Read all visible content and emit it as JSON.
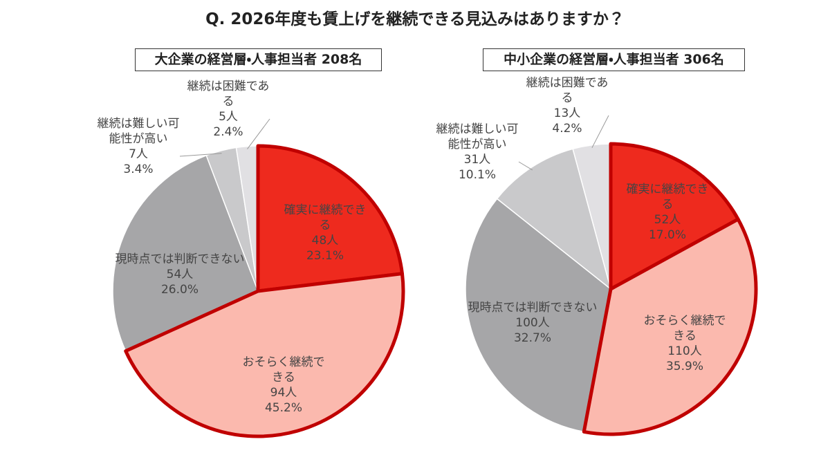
{
  "title": "Q. 2026年度も賃上げを継続できる見込みはありますか？",
  "chart_data": [
    {
      "type": "pie",
      "title": "大企業の経営層・人事担当者 208名",
      "categories": [
        "確実に継続できる",
        "おそらく継続できる",
        "現時点では判断できない",
        "継続は難しい可能性が高い",
        "継続は困難である"
      ],
      "count_labels": [
        "48人",
        "94人",
        "54人",
        "7人",
        "5人"
      ],
      "values": [
        23.1,
        45.2,
        26.0,
        3.4,
        2.4
      ],
      "value_labels": [
        "23.1%",
        "45.2%",
        "26.0%",
        "3.4%",
        "2.4%"
      ],
      "colors": [
        "#ee2a1e",
        "#fbb9ae",
        "#a6a6a8",
        "#c9c9cb",
        "#e1e0e3"
      ]
    },
    {
      "type": "pie",
      "title": "中小企業の経営層・人事担当者 306名",
      "categories": [
        "確実に継続できる",
        "おそらく継続できる",
        "現時点では判断できない",
        "継続は難しい可能性が高い",
        "継続は困難である"
      ],
      "count_labels": [
        "52人",
        "110人",
        "100人",
        "31人",
        "13人"
      ],
      "values": [
        17.0,
        35.9,
        32.7,
        10.1,
        4.2
      ],
      "value_labels": [
        "17.0%",
        "35.9%",
        "32.7%",
        "10.1%",
        "4.2%"
      ],
      "colors": [
        "#ee2a1e",
        "#fbb9ae",
        "#a6a6a8",
        "#c9c9cb",
        "#e1e0e3"
      ]
    }
  ]
}
